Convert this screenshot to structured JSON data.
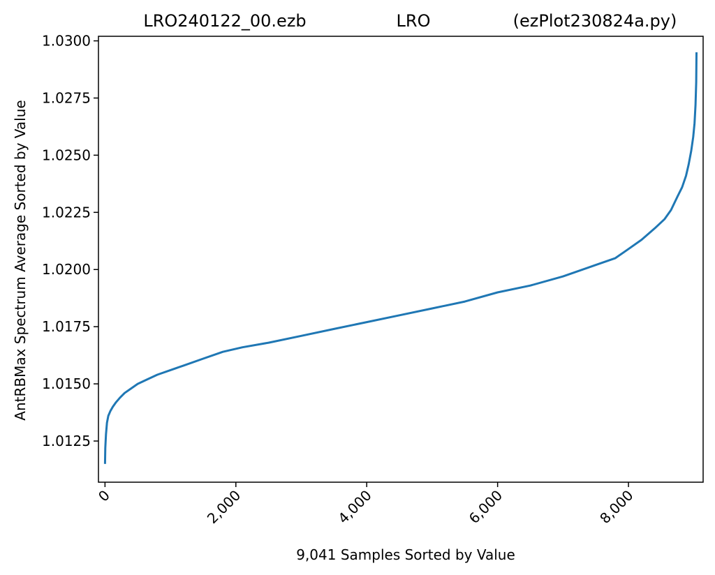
{
  "chart_data": {
    "type": "line",
    "title_parts": [
      "LRO240122_00.ezb",
      "LRO",
      "(ezPlot230824a.py)"
    ],
    "xlabel": "9,041 Samples Sorted by Value",
    "ylabel": "AntRBMax Spectrum Average Sorted by Value",
    "xlim": [
      -100,
      9141
    ],
    "ylim": [
      1.0107,
      1.0302
    ],
    "xticks": [
      0,
      2000,
      4000,
      6000,
      8000
    ],
    "xtick_labels": [
      "0",
      "2,000",
      "4,000",
      "6,000",
      "8,000"
    ],
    "yticks": [
      1.0125,
      1.015,
      1.0175,
      1.02,
      1.0225,
      1.025,
      1.0275,
      1.03
    ],
    "ytick_labels": [
      "1.0125",
      "1.0150",
      "1.0175",
      "1.0200",
      "1.0225",
      "1.0250",
      "1.0275",
      "1.0300"
    ],
    "grid": false,
    "line_color": "#1f77b4",
    "series": [
      {
        "x": [
          0,
          5,
          15,
          30,
          50,
          80,
          120,
          170,
          230,
          300,
          400,
          500,
          650,
          800,
          1000,
          1200,
          1500,
          1800,
          2100,
          2500,
          3000,
          3500,
          4000,
          4500,
          5000,
          5500,
          6000,
          6500,
          7000,
          7500,
          7800,
          8000,
          8200,
          8400,
          8550,
          8650,
          8750,
          8820,
          8880,
          8920,
          8960,
          8990,
          9010,
          9025,
          9035,
          9040
        ],
        "y": [
          1.0115,
          1.0122,
          1.0128,
          1.0133,
          1.0136,
          1.0138,
          1.014,
          1.0142,
          1.0144,
          1.0146,
          1.0148,
          1.015,
          1.0152,
          1.0154,
          1.0156,
          1.0158,
          1.0161,
          1.0164,
          1.0166,
          1.0168,
          1.0171,
          1.0174,
          1.0177,
          1.018,
          1.0183,
          1.0186,
          1.019,
          1.0193,
          1.0197,
          1.0202,
          1.0205,
          1.0209,
          1.0213,
          1.0218,
          1.0222,
          1.0226,
          1.0232,
          1.0236,
          1.0241,
          1.0246,
          1.0252,
          1.0258,
          1.0264,
          1.0272,
          1.0282,
          1.0295
        ]
      }
    ]
  }
}
